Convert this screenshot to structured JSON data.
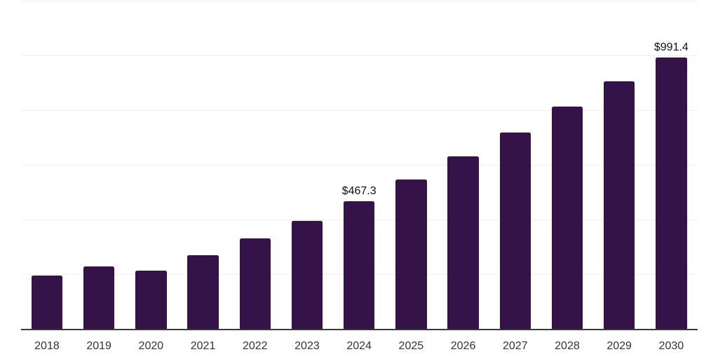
{
  "chart_data": {
    "type": "bar",
    "title": "",
    "xlabel": "",
    "ylabel": "",
    "categories": [
      "2018",
      "2019",
      "2020",
      "2021",
      "2022",
      "2023",
      "2024",
      "2025",
      "2026",
      "2027",
      "2028",
      "2029",
      "2030"
    ],
    "points": [
      {
        "category": "2018",
        "value": 195
      },
      {
        "category": "2019",
        "value": 229
      },
      {
        "category": "2020",
        "value": 213
      },
      {
        "category": "2021",
        "value": 270
      },
      {
        "category": "2022",
        "value": 330
      },
      {
        "category": "2023",
        "value": 394
      },
      {
        "category": "2024",
        "value": 467.3,
        "data_label": "$467.3"
      },
      {
        "category": "2025",
        "value": 545
      },
      {
        "category": "2026",
        "value": 630
      },
      {
        "category": "2027",
        "value": 718
      },
      {
        "category": "2028",
        "value": 813
      },
      {
        "category": "2029",
        "value": 904
      },
      {
        "category": "2030",
        "value": 991.4,
        "data_label": "$991.4"
      }
    ],
    "ylim": [
      0,
      1200
    ],
    "gridline_step": 200,
    "grid": true,
    "legend_visible": false,
    "y_tick_labels_visible": false,
    "colors": {
      "bar": "#351348",
      "axis_line": "#3a3a3a",
      "gridline": "#efefef",
      "tick_label": "#333333",
      "data_label": "#111111",
      "background": "#ffffff"
    }
  }
}
